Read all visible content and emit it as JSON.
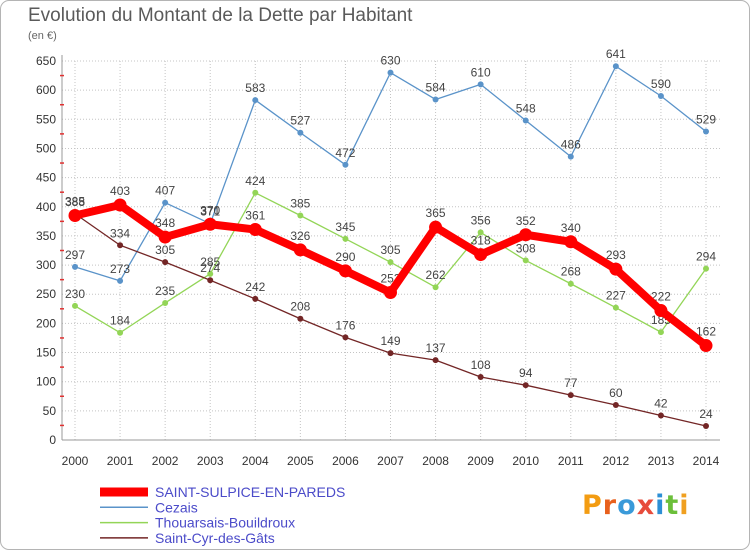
{
  "logo": "Proxiti",
  "logo_colors": [
    "#f39c12",
    "#e8601c",
    "#3a9ad9",
    "#e74c3c",
    "#2d8fd5",
    "#6bbf3a",
    "#f0a020"
  ],
  "chart_data": {
    "type": "line",
    "title": "Evolution du Montant de la Dette par Habitant",
    "subtitle": "(en €)",
    "x": [
      2000,
      2001,
      2002,
      2003,
      2004,
      2005,
      2006,
      2007,
      2008,
      2009,
      2010,
      2011,
      2012,
      2013,
      2014
    ],
    "ylim": [
      0,
      650
    ],
    "yticks": [
      0,
      50,
      100,
      150,
      200,
      250,
      300,
      350,
      400,
      450,
      500,
      550,
      600,
      650
    ],
    "grid": true,
    "legend_position": "bottom-left",
    "series": [
      {
        "name": "SAINT-SULPICE-EN-PAREDS",
        "color": "#ff0000",
        "values": [
          385,
          403,
          348,
          370,
          361,
          326,
          290,
          253,
          365,
          318,
          352,
          340,
          293,
          222,
          162
        ]
      },
      {
        "name": "Cezais",
        "color": "#5a93c9",
        "values": [
          297,
          273,
          407,
          371,
          583,
          527,
          472,
          630,
          584,
          610,
          548,
          486,
          641,
          590,
          529
        ]
      },
      {
        "name": "Thouarsais-Bouildroux",
        "color": "#93d557",
        "values": [
          230,
          184,
          235,
          285,
          424,
          385,
          345,
          305,
          262,
          356,
          308,
          268,
          227,
          185,
          294
        ]
      },
      {
        "name": "Saint-Cyr-des-Gâts",
        "color": "#732626",
        "values": [
          388,
          334,
          305,
          274,
          242,
          208,
          176,
          149,
          137,
          108,
          94,
          77,
          60,
          42,
          24
        ]
      }
    ]
  }
}
